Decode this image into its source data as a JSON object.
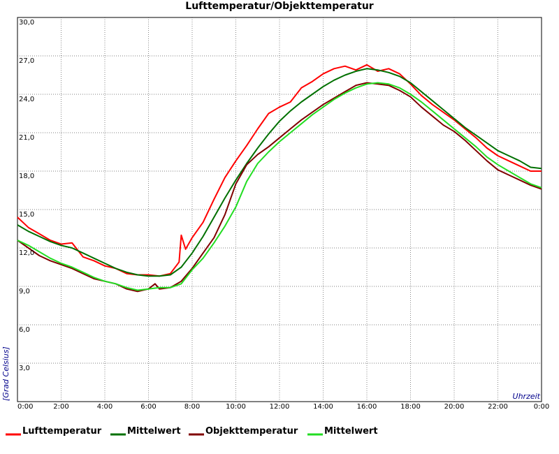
{
  "chart_data": {
    "type": "line",
    "title": "Lufttemperatur/Objekttemperatur",
    "xlabel": "Uhrzeit",
    "ylabel": "[Grad Celsius]",
    "xlim": [
      0,
      24
    ],
    "ylim": [
      0,
      30
    ],
    "grid": true,
    "legend_position": "bottom",
    "x_tick_labels": [
      "0:00",
      "2:00",
      "4:00",
      "6:00",
      "8:00",
      "10:00",
      "12:00",
      "14:00",
      "16:00",
      "18:00",
      "20:00",
      "22:00",
      "0:00"
    ],
    "y_tick_labels": [
      "3,0",
      "6,0",
      "9,0",
      "12,0",
      "15,0",
      "18,0",
      "21,0",
      "24,0",
      "27,0",
      "30,0"
    ],
    "series": [
      {
        "name": "Lufttemperatur",
        "color": "#ff0000",
        "x": [
          0,
          0.5,
          1,
          1.5,
          2,
          2.5,
          3,
          3.5,
          4,
          4.5,
          5,
          5.5,
          6,
          6.5,
          7,
          7.4,
          7.5,
          7.7,
          8,
          8.5,
          9,
          9.5,
          10,
          10.5,
          11,
          11.5,
          12,
          12.5,
          13,
          13.5,
          14,
          14.5,
          15,
          15.5,
          16,
          16.5,
          17,
          17.5,
          18,
          18.5,
          19,
          19.5,
          20,
          20.5,
          21,
          21.5,
          22,
          22.5,
          23,
          23.5,
          24
        ],
        "y": [
          14.4,
          13.6,
          13.1,
          12.6,
          12.3,
          12.4,
          11.3,
          11.0,
          10.6,
          10.4,
          10.0,
          9.9,
          9.9,
          9.8,
          10.0,
          10.9,
          13.0,
          11.9,
          12.8,
          14.0,
          15.8,
          17.5,
          18.8,
          20.0,
          21.3,
          22.5,
          23.0,
          23.4,
          24.5,
          25.0,
          25.6,
          26.0,
          26.2,
          25.9,
          26.3,
          25.8,
          26.0,
          25.6,
          24.8,
          23.9,
          23.2,
          22.6,
          22.0,
          21.3,
          20.6,
          19.8,
          19.2,
          18.8,
          18.4,
          18.0,
          18.0
        ]
      },
      {
        "name": "Mittelwert",
        "color": "#007000",
        "x": [
          0,
          0.5,
          1,
          1.5,
          2,
          2.5,
          3,
          3.5,
          4,
          4.5,
          5,
          5.5,
          6,
          6.5,
          7,
          7.5,
          8,
          8.5,
          9,
          9.5,
          10,
          10.5,
          11,
          11.5,
          12,
          12.5,
          13,
          13.5,
          14,
          14.5,
          15,
          15.5,
          16,
          16.5,
          17,
          17.5,
          18,
          18.5,
          19,
          19.5,
          20,
          20.5,
          21,
          21.5,
          22,
          22.5,
          23,
          23.5,
          24
        ],
        "y": [
          13.8,
          13.3,
          12.9,
          12.5,
          12.2,
          12.0,
          11.6,
          11.2,
          10.8,
          10.4,
          10.1,
          9.9,
          9.8,
          9.8,
          9.9,
          10.5,
          11.6,
          12.9,
          14.4,
          15.9,
          17.3,
          18.6,
          19.8,
          20.9,
          21.9,
          22.7,
          23.4,
          24.0,
          24.6,
          25.1,
          25.5,
          25.8,
          26.0,
          25.9,
          25.7,
          25.4,
          24.9,
          24.2,
          23.5,
          22.8,
          22.1,
          21.4,
          20.8,
          20.2,
          19.6,
          19.2,
          18.8,
          18.3,
          18.2
        ]
      },
      {
        "name": "Objekttemperatur",
        "color": "#800000",
        "x": [
          0,
          0.5,
          1,
          1.5,
          2,
          2.5,
          3,
          3.5,
          4,
          4.5,
          5,
          5.5,
          6,
          6.3,
          6.5,
          7,
          7.5,
          8,
          8.5,
          9,
          9.5,
          10,
          10.5,
          11,
          11.5,
          12,
          12.5,
          13,
          13.5,
          14,
          14.5,
          15,
          15.5,
          16,
          16.5,
          17,
          17.5,
          18,
          18.5,
          19,
          19.5,
          20,
          20.5,
          21,
          21.5,
          22,
          22.5,
          23,
          23.5,
          24
        ],
        "y": [
          12.6,
          12.0,
          11.4,
          11.0,
          10.7,
          10.4,
          10.0,
          9.6,
          9.4,
          9.2,
          8.8,
          8.6,
          8.8,
          9.2,
          8.8,
          8.9,
          9.4,
          10.4,
          11.6,
          12.8,
          14.6,
          17.0,
          18.5,
          19.3,
          19.9,
          20.6,
          21.3,
          22.0,
          22.6,
          23.2,
          23.7,
          24.2,
          24.7,
          24.9,
          24.8,
          24.7,
          24.3,
          23.8,
          23.0,
          22.3,
          21.6,
          21.1,
          20.4,
          19.6,
          18.8,
          18.1,
          17.7,
          17.3,
          16.9,
          16.6
        ]
      },
      {
        "name": "Mittelwert",
        "color": "#22dd22",
        "x": [
          0,
          0.5,
          1,
          1.5,
          2,
          2.5,
          3,
          3.5,
          4,
          4.5,
          5,
          5.5,
          6,
          6.5,
          7,
          7.5,
          8,
          8.5,
          9,
          9.5,
          10,
          10.5,
          11,
          11.5,
          12,
          12.5,
          13,
          13.5,
          14,
          14.5,
          15,
          15.5,
          16,
          16.5,
          17,
          17.5,
          18,
          18.5,
          19,
          19.5,
          20,
          20.5,
          21,
          21.5,
          22,
          22.5,
          23,
          23.5,
          24
        ],
        "y": [
          12.6,
          12.2,
          11.7,
          11.2,
          10.8,
          10.5,
          10.1,
          9.7,
          9.4,
          9.2,
          8.9,
          8.7,
          8.8,
          8.9,
          8.9,
          9.2,
          10.3,
          11.2,
          12.4,
          13.7,
          15.2,
          17.2,
          18.6,
          19.5,
          20.3,
          21.0,
          21.7,
          22.4,
          23.0,
          23.6,
          24.1,
          24.5,
          24.8,
          24.9,
          24.8,
          24.5,
          24.0,
          23.4,
          22.7,
          22.0,
          21.3,
          20.6,
          19.9,
          19.1,
          18.5,
          18.0,
          17.5,
          17.0,
          16.7
        ]
      }
    ]
  }
}
